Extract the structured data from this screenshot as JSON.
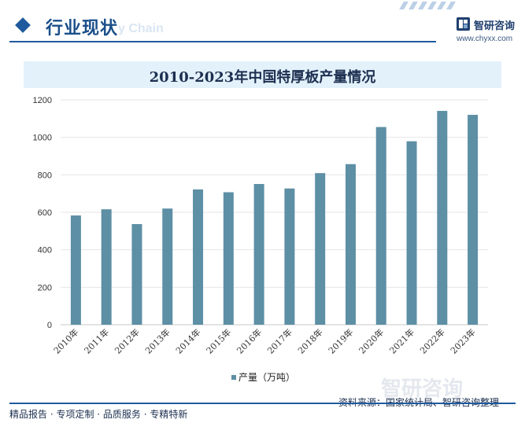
{
  "header": {
    "section_title": "行业现状",
    "ghost_text": "y Chain",
    "logo_name": "智研咨询",
    "logo_url": "www.chyxx.com",
    "logo_color": "#1f3f6e"
  },
  "chart_data": {
    "type": "bar",
    "title": "2010-2023年中国特厚板产量情况",
    "categories": [
      "2010年",
      "2011年",
      "2012年",
      "2013年",
      "2014年",
      "2015年",
      "2016年",
      "2017年",
      "2018年",
      "2019年",
      "2020年",
      "2021年",
      "2022年",
      "2023年"
    ],
    "series": [
      {
        "name": "产量（万吨）",
        "values": [
          583,
          616,
          537,
          620,
          722,
          707,
          751,
          727,
          809,
          857,
          1055,
          979,
          1141,
          1120
        ],
        "color": "#5d8fa5"
      }
    ],
    "ylim": [
      0,
      1200
    ],
    "yticks": [
      0,
      200,
      400,
      600,
      800,
      1000,
      1200
    ],
    "grid": true,
    "legend": "bottom-center"
  },
  "watermark": {
    "text": "智研咨询"
  },
  "footer": {
    "left": "精品报告 · 专项定制 · 品质服务 · 专精特新",
    "right": "资料来源：国家统计局、智研咨询整理"
  }
}
